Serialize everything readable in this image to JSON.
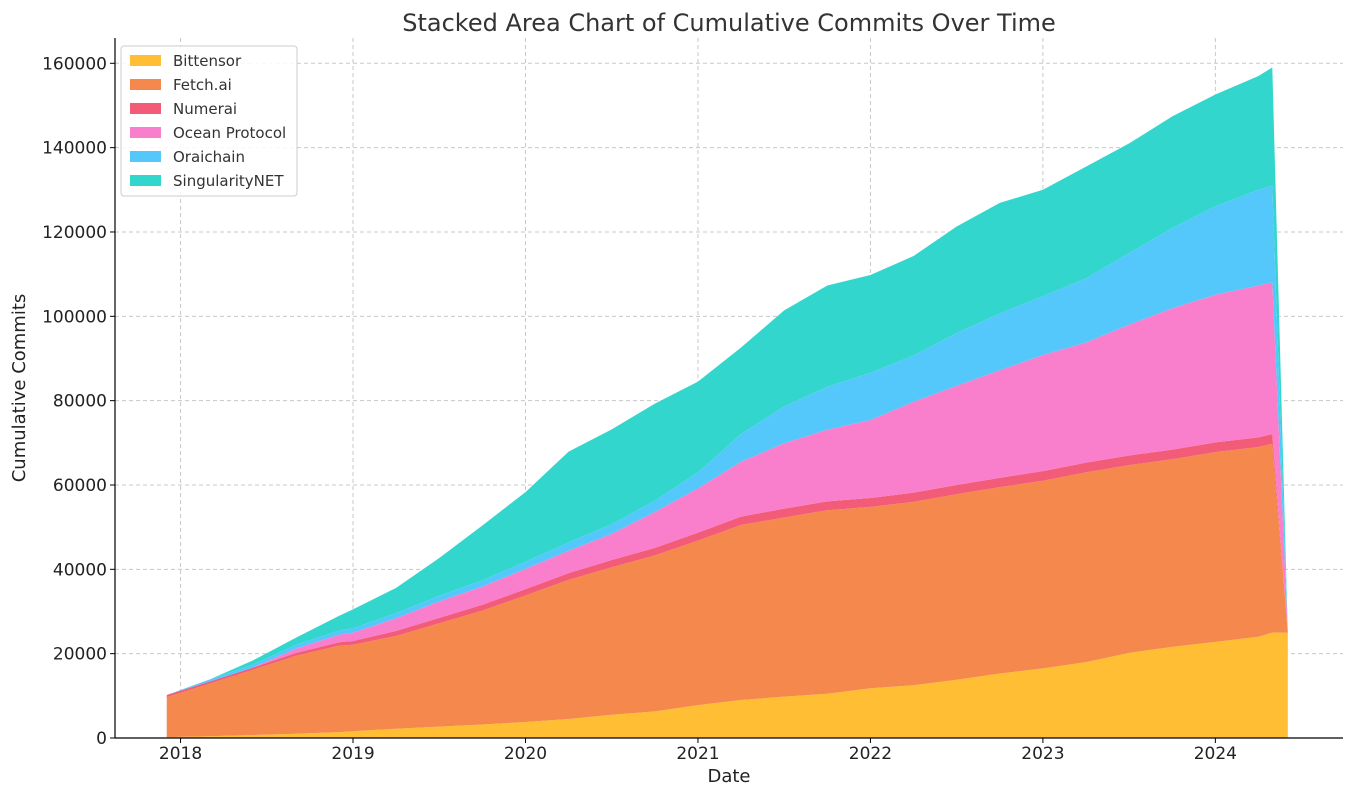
{
  "chart_data": {
    "type": "area",
    "stacked": true,
    "title": "Stacked Area Chart of Cumulative Commits Over Time",
    "xlabel": "Date",
    "ylabel": "Cumulative Commits",
    "xlim": [
      2017.62,
      2024.74
    ],
    "ylim": [
      0,
      166000
    ],
    "x_ticks": [
      2018,
      2019,
      2020,
      2021,
      2022,
      2023,
      2024
    ],
    "y_ticks": [
      0,
      20000,
      40000,
      60000,
      80000,
      100000,
      120000,
      140000,
      160000
    ],
    "grid": true,
    "legend_position": "top-left",
    "x": [
      2017.92,
      2018.17,
      2018.42,
      2018.67,
      2018.92,
      2019.0,
      2019.25,
      2019.5,
      2019.75,
      2020.0,
      2020.25,
      2020.5,
      2020.75,
      2021.0,
      2021.25,
      2021.5,
      2021.75,
      2022.0,
      2022.25,
      2022.5,
      2022.75,
      2023.0,
      2023.25,
      2023.5,
      2023.75,
      2024.0,
      2024.25,
      2024.33,
      2024.42
    ],
    "series": [
      {
        "name": "Bittensor",
        "color": "#FFBE33",
        "values": [
          200,
          400,
          700,
          1000,
          1400,
          1600,
          2200,
          2700,
          3200,
          3800,
          4500,
          5500,
          6300,
          7800,
          9000,
          9800,
          10500,
          11800,
          12500,
          13800,
          15300,
          16500,
          18000,
          20200,
          21600,
          22800,
          24000,
          25000,
          25000
        ]
      },
      {
        "name": "Fetch.ai",
        "color": "#F5884C",
        "values": [
          9500,
          12500,
          15500,
          18500,
          20500,
          20500,
          22000,
          24500,
          27000,
          30000,
          33000,
          35000,
          37000,
          39000,
          41500,
          42500,
          43500,
          43000,
          43500,
          44000,
          44200,
          44500,
          45000,
          44500,
          44500,
          45000,
          45000,
          44800,
          0
        ]
      },
      {
        "name": "Numerai",
        "color": "#F25C78",
        "values": [
          500,
          500,
          500,
          700,
          800,
          900,
          1200,
          1300,
          1400,
          1500,
          1600,
          1700,
          1800,
          1900,
          2000,
          2100,
          2100,
          2100,
          2200,
          2200,
          2200,
          2300,
          2300,
          2300,
          2300,
          2300,
          2300,
          2300,
          0
        ]
      },
      {
        "name": "Ocean Protocol",
        "color": "#F97ECB",
        "values": [
          0,
          0,
          0,
          1000,
          1800,
          2000,
          3000,
          3900,
          4300,
          4800,
          5300,
          6200,
          8500,
          10500,
          13000,
          15500,
          17000,
          18500,
          21500,
          23500,
          25500,
          27500,
          28500,
          31000,
          33500,
          35000,
          36000,
          36000,
          0
        ]
      },
      {
        "name": "Oraichain",
        "color": "#55C8FB",
        "values": [
          0,
          500,
          700,
          900,
          1000,
          1000,
          1200,
          1300,
          1500,
          1700,
          2000,
          2300,
          2700,
          3800,
          6600,
          8700,
          10200,
          11200,
          11000,
          12500,
          13500,
          14000,
          15200,
          17000,
          19000,
          21000,
          22700,
          22900,
          0
        ]
      },
      {
        "name": "SingularityNET",
        "color": "#33D6CC",
        "values": [
          0,
          0,
          1000,
          1700,
          3500,
          4500,
          6000,
          9000,
          13000,
          16500,
          21500,
          22500,
          23000,
          21500,
          20500,
          22800,
          24000,
          23200,
          23600,
          25300,
          26200,
          25200,
          26500,
          26000,
          26500,
          26500,
          27000,
          28000,
          0
        ]
      }
    ]
  }
}
